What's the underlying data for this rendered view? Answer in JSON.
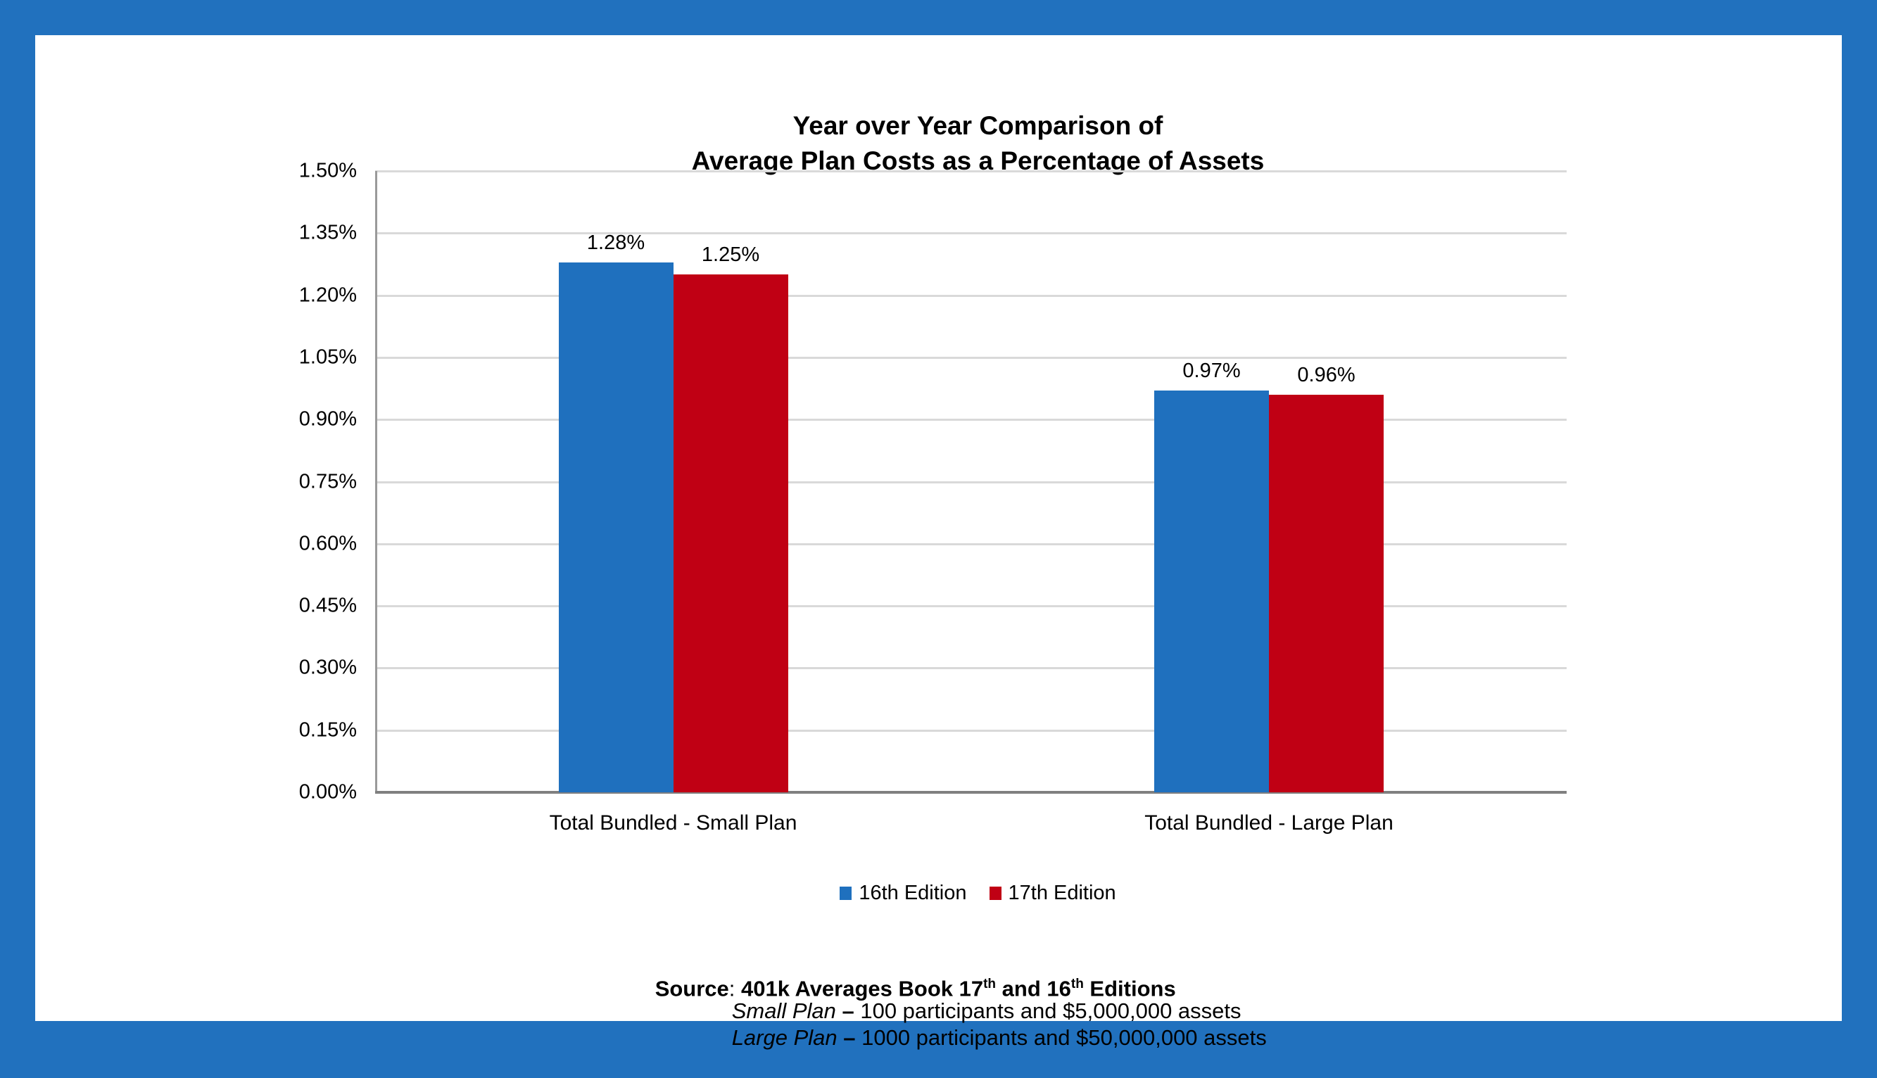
{
  "frame": {
    "border_color": "#2171BE",
    "panel_background": "#FFFFFF"
  },
  "chart_data": {
    "type": "bar",
    "title_line1": "Year over Year Comparison of",
    "title_line2": "Average Plan Costs as a Percentage of Assets",
    "categories": [
      "Total Bundled - Small Plan",
      "Total Bundled - Large Plan"
    ],
    "series": [
      {
        "name": "16th Edition",
        "color": "#1F70BE",
        "values": [
          1.28,
          0.97
        ],
        "data_labels": [
          "1.28%",
          "0.97%"
        ]
      },
      {
        "name": "17th Edition",
        "color": "#C00014",
        "values": [
          1.25,
          0.96
        ],
        "data_labels": [
          "1.25%",
          "0.96%"
        ]
      }
    ],
    "y_axis": {
      "min": 0,
      "max": 1.5,
      "step": 0.15,
      "tick_labels": [
        "0.00%",
        "0.15%",
        "0.30%",
        "0.45%",
        "0.60%",
        "0.75%",
        "0.90%",
        "1.05%",
        "1.20%",
        "1.35%",
        "1.50%"
      ]
    },
    "grid": true,
    "gridline_color": "#D9D9D9",
    "baseline_color": "#808080",
    "axis_line_color": "#9A9A9A",
    "legend_position": "bottom"
  },
  "source": {
    "line1": {
      "label": "Source",
      "sep": ": ",
      "seg1": "401k Averages Book 17",
      "sup1": "th",
      "seg2": " and 16",
      "sup2": "th",
      "seg3": " Editions"
    },
    "line2": {
      "italic": "Small Plan",
      "dash": " – ",
      "rest": "100 participants and $5,000,000 assets"
    },
    "line3": {
      "italic": "Large Plan",
      "dash": " – ",
      "rest": "1000 participants and $50,000,000 assets"
    }
  }
}
